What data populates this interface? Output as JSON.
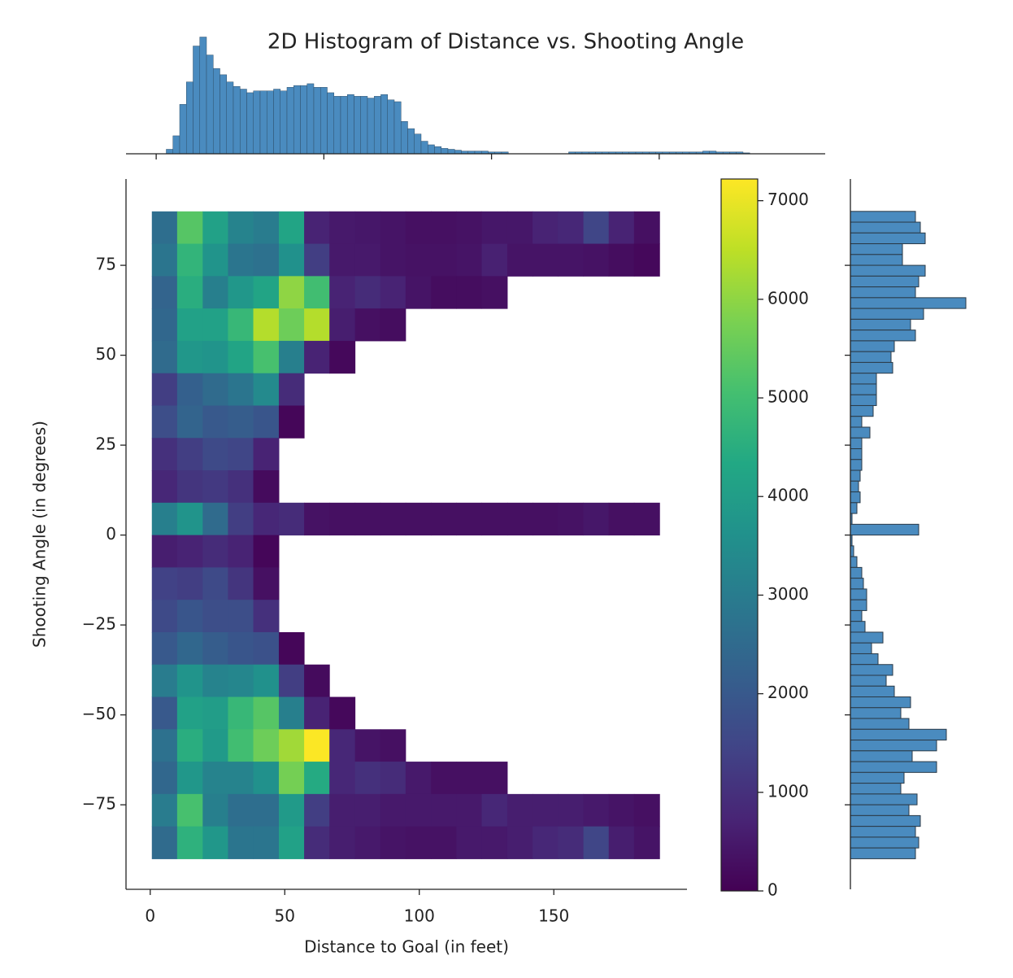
{
  "chart_data": [
    {
      "type": "heatmap",
      "title": "2D Histogram of Distance vs. Shooting Angle",
      "x_label": "Distance to Goal (in feet)",
      "y_label": "Shooting Angle (in degrees)",
      "colormap": "viridis",
      "x_bins": [
        0.6,
        10,
        19.5,
        28.9,
        38.3,
        47.8,
        57.2,
        66.6,
        76.1,
        85.5,
        94.9,
        104.4,
        113.8,
        123.2,
        132.7,
        142.1,
        151.5,
        161,
        170.4,
        179.8,
        189.3
      ],
      "y_bins": [
        90,
        81,
        72,
        63,
        54,
        45,
        36,
        27,
        18,
        9,
        0,
        -9,
        -18,
        -27,
        -36,
        -45,
        -54,
        -63,
        -72,
        -81,
        -90
      ],
      "values": [
        [
          2600,
          5300,
          4100,
          3200,
          3000,
          4200,
          700,
          500,
          450,
          400,
          300,
          300,
          350,
          450,
          450,
          700,
          800,
          1500,
          700,
          300
        ],
        [
          2800,
          4700,
          3700,
          2800,
          2700,
          3600,
          1300,
          500,
          500,
          400,
          350,
          350,
          400,
          650,
          400,
          400,
          400,
          350,
          250,
          150
        ],
        [
          2300,
          4500,
          3100,
          3800,
          4200,
          6000,
          5000,
          700,
          900,
          700,
          400,
          250,
          250,
          300,
          null,
          null,
          null,
          null,
          null,
          null
        ],
        [
          2400,
          4100,
          4100,
          4800,
          6400,
          5600,
          6400,
          600,
          300,
          250,
          null,
          null,
          null,
          null,
          null,
          null,
          null,
          null,
          null,
          null
        ],
        [
          2500,
          3800,
          3700,
          4200,
          5100,
          3100,
          700,
          150,
          null,
          null,
          null,
          null,
          null,
          null,
          null,
          null,
          null,
          null,
          null,
          null
        ],
        [
          1300,
          2200,
          2500,
          2800,
          3400,
          900,
          null,
          null,
          null,
          null,
          null,
          null,
          null,
          null,
          null,
          null,
          null,
          null,
          null,
          null
        ],
        [
          1700,
          2300,
          2000,
          2100,
          1900,
          100,
          null,
          null,
          null,
          null,
          null,
          null,
          null,
          null,
          null,
          null,
          null,
          null,
          null,
          null
        ],
        [
          1000,
          1300,
          1600,
          1500,
          700,
          null,
          null,
          null,
          null,
          null,
          null,
          null,
          null,
          null,
          null,
          null,
          null,
          null,
          null,
          null
        ],
        [
          800,
          1100,
          1200,
          1000,
          200,
          null,
          null,
          null,
          null,
          null,
          null,
          null,
          null,
          null,
          null,
          null,
          null,
          null,
          null,
          null
        ],
        [
          3100,
          3700,
          2500,
          1300,
          800,
          900,
          350,
          300,
          300,
          300,
          300,
          300,
          300,
          300,
          300,
          300,
          350,
          450,
          300,
          300
        ],
        [
          600,
          700,
          900,
          700,
          100,
          null,
          null,
          null,
          null,
          null,
          null,
          null,
          null,
          null,
          null,
          null,
          null,
          null,
          null,
          null
        ],
        [
          1400,
          1300,
          1600,
          1100,
          300,
          null,
          null,
          null,
          null,
          null,
          null,
          null,
          null,
          null,
          null,
          null,
          null,
          null,
          null,
          null
        ],
        [
          1600,
          1900,
          1700,
          1700,
          1000,
          null,
          null,
          null,
          null,
          null,
          null,
          null,
          null,
          null,
          null,
          null,
          null,
          null,
          null,
          null
        ],
        [
          2000,
          2400,
          2100,
          1900,
          1800,
          100,
          null,
          null,
          null,
          null,
          null,
          null,
          null,
          null,
          null,
          null,
          null,
          null,
          null,
          null
        ],
        [
          3000,
          3700,
          3200,
          3300,
          3600,
          1300,
          200,
          null,
          null,
          null,
          null,
          null,
          null,
          null,
          null,
          null,
          null,
          null,
          null,
          null
        ],
        [
          2000,
          4100,
          4000,
          4800,
          5300,
          3100,
          700,
          150,
          null,
          null,
          null,
          null,
          null,
          null,
          null,
          null,
          null,
          null,
          null,
          null
        ],
        [
          2700,
          4500,
          3900,
          5000,
          5600,
          6200,
          7200,
          800,
          400,
          300,
          null,
          null,
          null,
          null,
          null,
          null,
          null,
          null,
          null,
          null
        ],
        [
          2400,
          3800,
          3200,
          3200,
          3600,
          5700,
          4400,
          800,
          1000,
          900,
          500,
          300,
          300,
          300,
          null,
          null,
          null,
          null,
          null,
          null
        ],
        [
          3000,
          5100,
          3100,
          2600,
          2600,
          3900,
          1300,
          600,
          600,
          500,
          500,
          500,
          500,
          800,
          600,
          600,
          600,
          500,
          400,
          300
        ],
        [
          2500,
          4600,
          3800,
          2800,
          2800,
          4100,
          900,
          600,
          500,
          400,
          350,
          350,
          500,
          500,
          600,
          800,
          900,
          1500,
          600,
          400
        ]
      ],
      "xlim": [
        -9,
        199.5
      ],
      "ylim": [
        -98.5,
        99
      ],
      "xticks": [
        0,
        50,
        100,
        150
      ],
      "yticks": [
        {
          "value": -75,
          "label": "−75"
        },
        {
          "value": -50,
          "label": "−50"
        },
        {
          "value": -25,
          "label": "−25"
        },
        0,
        25,
        50,
        75
      ],
      "clim": [
        0,
        7220
      ],
      "cticks": [
        0,
        1000,
        2000,
        3000,
        4000,
        5000,
        6000,
        7000
      ]
    },
    {
      "type": "histogram",
      "orientation": "vertical",
      "color": "#4a8bbf",
      "edgecolor": "#2f4f6a",
      "bins": [
        3,
        5,
        7,
        9,
        11,
        13,
        15,
        17,
        19,
        21,
        23,
        25,
        27,
        29,
        31,
        33,
        35,
        37,
        39,
        41,
        43,
        45,
        47,
        49,
        51,
        53,
        55,
        57,
        59,
        61,
        63,
        65,
        67,
        69,
        71,
        73,
        75,
        77,
        79,
        81,
        83,
        85,
        87,
        89,
        91,
        93,
        95,
        97,
        99,
        101,
        103,
        105,
        107,
        109,
        111,
        113,
        115,
        117,
        119,
        121,
        123,
        125,
        127,
        129,
        131,
        133,
        135,
        137,
        139,
        141,
        143,
        145,
        147,
        149,
        151,
        153,
        155,
        157,
        159,
        161,
        163,
        165,
        167,
        169,
        171,
        173,
        175,
        177
      ],
      "values": [
        5,
        20,
        55,
        80,
        120,
        130,
        110,
        95,
        88,
        80,
        75,
        72,
        68,
        70,
        70,
        70,
        72,
        70,
        74,
        76,
        76,
        78,
        74,
        74,
        68,
        64,
        64,
        66,
        64,
        64,
        62,
        64,
        66,
        60,
        58,
        36,
        28,
        22,
        14,
        10,
        8,
        6,
        5,
        4,
        3,
        3,
        3,
        3,
        2,
        2,
        2,
        0,
        0,
        0,
        0,
        0,
        0,
        0,
        0,
        0,
        2,
        2,
        2,
        2,
        2,
        2,
        2,
        2,
        2,
        2,
        2,
        2,
        2,
        2,
        2,
        2,
        2,
        2,
        2,
        2,
        3,
        3,
        2,
        2,
        2,
        2,
        1
      ],
      "xlim": [
        -9,
        199.5
      ],
      "ylim": [
        0,
        135
      ],
      "xticks": [
        0,
        50,
        100,
        150
      ]
    },
    {
      "type": "histogram",
      "orientation": "horizontal",
      "color": "#4a8bbf",
      "edgecolor": "#2b3a47",
      "bins": [
        90,
        87,
        84,
        81,
        78,
        75,
        72,
        69,
        66,
        63,
        60,
        57,
        54,
        51,
        48,
        45,
        42,
        39,
        36,
        33,
        30,
        27,
        24,
        21,
        18,
        15,
        12,
        9,
        6,
        3,
        0,
        -3,
        -6,
        -9,
        -12,
        -15,
        -18,
        -21,
        -24,
        -27,
        -30,
        -33,
        -36,
        -39,
        -42,
        -45,
        -48,
        -51,
        -54,
        -57,
        -60,
        -63,
        -66,
        -69,
        -72,
        -75,
        -78,
        -81,
        -84,
        -87,
        -90
      ],
      "values": [
        80,
        86,
        92,
        64,
        64,
        92,
        84,
        80,
        142,
        90,
        74,
        80,
        54,
        50,
        52,
        32,
        32,
        32,
        28,
        14,
        24,
        14,
        14,
        14,
        12,
        10,
        12,
        8,
        2,
        84,
        2,
        4,
        8,
        14,
        16,
        20,
        20,
        14,
        18,
        40,
        26,
        34,
        52,
        44,
        54,
        74,
        62,
        72,
        118,
        106,
        76,
        106,
        66,
        62,
        82,
        72,
        86,
        80,
        84,
        80
      ],
      "xlim": [
        0,
        170
      ],
      "ylim": [
        -98.5,
        99
      ],
      "yticks": [
        -75,
        -50,
        -25,
        0,
        25,
        50,
        75
      ]
    }
  ]
}
